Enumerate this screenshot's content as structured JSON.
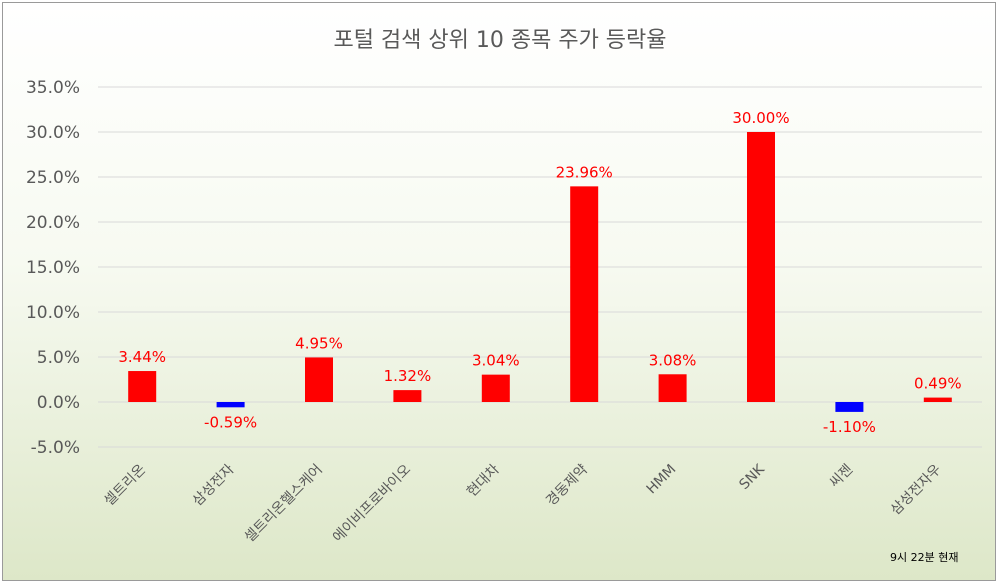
{
  "chart_data": {
    "type": "bar",
    "title": "포털 검색 상위 10 종목 주가 등락율",
    "categories": [
      "셀트리온",
      "삼성전자",
      "셀트리온헬스케어",
      "에이비프로바이오",
      "현대차",
      "경동제약",
      "HMM",
      "SNK",
      "씨젠",
      "삼성전자우"
    ],
    "values": [
      3.44,
      -0.59,
      4.95,
      1.32,
      3.04,
      23.96,
      3.08,
      30.0,
      -1.1,
      0.49
    ],
    "data_labels": [
      "3.44%",
      "-0.59%",
      "4.95%",
      "1.32%",
      "3.04%",
      "23.96%",
      "3.08%",
      "30.00%",
      "-1.10%",
      "0.49%"
    ],
    "ylim": [
      -5,
      35
    ],
    "yticks": [
      35,
      30,
      25,
      20,
      15,
      10,
      5,
      0,
      -5
    ],
    "ytick_labels": [
      "35.0%",
      "30.0%",
      "25.0%",
      "20.0%",
      "15.0%",
      "10.0%",
      "5.0%",
      "0.0%",
      "-5.0%"
    ],
    "grid": true,
    "colors": {
      "positive": "#ff0000",
      "negative": "#0000ff",
      "label_text": "#ff0000",
      "grid": "#d9d9d9"
    }
  },
  "footnote": "9시 22분 현재"
}
